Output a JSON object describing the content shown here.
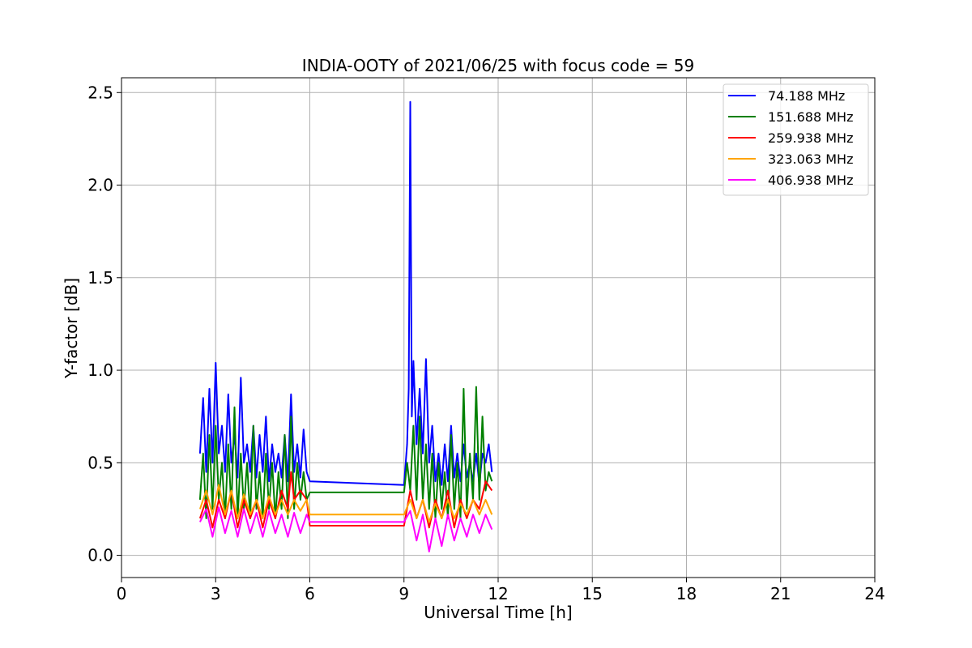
{
  "chart_data": {
    "type": "line",
    "title": "INDIA-OOTY of 2021/06/25 with focus code = 59",
    "xlabel": "Universal Time [h]",
    "ylabel": "Y-factor [dB]",
    "xlim": [
      0,
      24
    ],
    "ylim": [
      -0.12,
      2.58
    ],
    "xticks": [
      0,
      3,
      6,
      9,
      12,
      15,
      18,
      21,
      24
    ],
    "xtick_labels": [
      "0",
      "3",
      "6",
      "9",
      "12",
      "15",
      "18",
      "21",
      "24"
    ],
    "yticks": [
      0.0,
      0.5,
      1.0,
      1.5,
      2.0,
      2.5
    ],
    "ytick_labels": [
      "0.0",
      "0.5",
      "1.0",
      "1.5",
      "2.0",
      "2.5"
    ],
    "grid": true,
    "legend_position": "top-right",
    "series": [
      {
        "name": " 74.188 MHz",
        "color": "#0000ff",
        "x": [
          2.5,
          2.6,
          2.7,
          2.8,
          2.9,
          3.0,
          3.1,
          3.2,
          3.3,
          3.4,
          3.5,
          3.6,
          3.7,
          3.8,
          3.9,
          4.0,
          4.1,
          4.2,
          4.3,
          4.4,
          4.5,
          4.6,
          4.7,
          4.8,
          4.9,
          5.0,
          5.1,
          5.2,
          5.3,
          5.4,
          5.5,
          5.6,
          5.7,
          5.8,
          5.9,
          6.0,
          9.0,
          9.1,
          9.15,
          9.2,
          9.25,
          9.3,
          9.4,
          9.5,
          9.6,
          9.7,
          9.8,
          9.9,
          10.0,
          10.1,
          10.2,
          10.3,
          10.4,
          10.5,
          10.6,
          10.7,
          10.8,
          10.9,
          11.0,
          11.1,
          11.2,
          11.3,
          11.4,
          11.5,
          11.6,
          11.7,
          11.8
        ],
        "y": [
          0.55,
          0.85,
          0.45,
          0.9,
          0.5,
          1.04,
          0.55,
          0.7,
          0.45,
          0.87,
          0.5,
          0.65,
          0.42,
          0.96,
          0.5,
          0.6,
          0.45,
          0.7,
          0.42,
          0.65,
          0.45,
          0.75,
          0.4,
          0.6,
          0.45,
          0.55,
          0.42,
          0.65,
          0.4,
          0.87,
          0.45,
          0.6,
          0.42,
          0.68,
          0.45,
          0.4,
          0.38,
          0.6,
          0.9,
          2.45,
          0.75,
          1.05,
          0.6,
          0.9,
          0.55,
          1.06,
          0.5,
          0.7,
          0.4,
          0.55,
          0.38,
          0.6,
          0.4,
          0.7,
          0.42,
          0.55,
          0.4,
          0.6,
          0.42,
          0.5,
          0.4,
          0.55,
          0.38,
          0.55,
          0.5,
          0.6,
          0.45
        ]
      },
      {
        "name": "151.688 MHz",
        "color": "#008000",
        "x": [
          2.5,
          2.6,
          2.7,
          2.8,
          2.9,
          3.0,
          3.1,
          3.2,
          3.3,
          3.4,
          3.5,
          3.6,
          3.7,
          3.8,
          3.9,
          4.0,
          4.1,
          4.2,
          4.3,
          4.4,
          4.5,
          4.6,
          4.7,
          4.8,
          4.9,
          5.0,
          5.1,
          5.2,
          5.3,
          5.4,
          5.5,
          5.6,
          5.7,
          5.8,
          5.9,
          6.0,
          9.0,
          9.1,
          9.2,
          9.3,
          9.4,
          9.5,
          9.6,
          9.7,
          9.8,
          9.9,
          10.0,
          10.1,
          10.2,
          10.3,
          10.4,
          10.5,
          10.6,
          10.7,
          10.8,
          10.9,
          11.0,
          11.1,
          11.2,
          11.3,
          11.4,
          11.5,
          11.6,
          11.7,
          11.8
        ],
        "y": [
          0.3,
          0.55,
          0.2,
          0.65,
          0.25,
          0.7,
          0.3,
          0.5,
          0.2,
          0.6,
          0.25,
          0.8,
          0.2,
          0.55,
          0.25,
          0.5,
          0.2,
          0.7,
          0.25,
          0.45,
          0.2,
          0.55,
          0.25,
          0.5,
          0.2,
          0.45,
          0.25,
          0.65,
          0.2,
          0.75,
          0.25,
          0.5,
          0.3,
          0.45,
          0.3,
          0.34,
          0.34,
          0.5,
          0.35,
          0.7,
          0.3,
          0.75,
          0.3,
          0.6,
          0.25,
          0.55,
          0.2,
          0.5,
          0.25,
          0.45,
          0.2,
          0.65,
          0.25,
          0.5,
          0.2,
          0.9,
          0.25,
          0.55,
          0.3,
          0.91,
          0.3,
          0.75,
          0.35,
          0.45,
          0.4
        ]
      },
      {
        "name": "259.938 MHz",
        "color": "#ff0000",
        "x": [
          2.5,
          2.7,
          2.9,
          3.1,
          3.3,
          3.5,
          3.7,
          3.9,
          4.1,
          4.3,
          4.5,
          4.7,
          4.9,
          5.1,
          5.3,
          5.4,
          5.5,
          5.7,
          5.9,
          6.0,
          9.0,
          9.2,
          9.4,
          9.6,
          9.8,
          10.0,
          10.2,
          10.4,
          10.6,
          10.8,
          11.0,
          11.2,
          11.4,
          11.6,
          11.8
        ],
        "y": [
          0.2,
          0.3,
          0.15,
          0.3,
          0.2,
          0.35,
          0.15,
          0.3,
          0.2,
          0.3,
          0.15,
          0.3,
          0.2,
          0.35,
          0.25,
          0.45,
          0.3,
          0.35,
          0.3,
          0.16,
          0.16,
          0.35,
          0.2,
          0.3,
          0.15,
          0.3,
          0.2,
          0.35,
          0.15,
          0.3,
          0.2,
          0.3,
          0.25,
          0.4,
          0.35
        ]
      },
      {
        "name": "323.063 MHz",
        "color": "#ffa500",
        "x": [
          2.5,
          2.7,
          2.9,
          3.1,
          3.3,
          3.5,
          3.7,
          3.9,
          4.1,
          4.3,
          4.5,
          4.7,
          4.9,
          5.1,
          5.3,
          5.5,
          5.7,
          5.9,
          6.0,
          9.0,
          9.2,
          9.4,
          9.6,
          9.8,
          10.0,
          10.2,
          10.4,
          10.6,
          10.8,
          11.0,
          11.2,
          11.4,
          11.6,
          11.8
        ],
        "y": [
          0.25,
          0.35,
          0.22,
          0.38,
          0.22,
          0.35,
          0.2,
          0.33,
          0.22,
          0.3,
          0.2,
          0.32,
          0.22,
          0.3,
          0.22,
          0.3,
          0.24,
          0.3,
          0.22,
          0.22,
          0.3,
          0.2,
          0.3,
          0.18,
          0.28,
          0.2,
          0.3,
          0.2,
          0.28,
          0.22,
          0.3,
          0.22,
          0.3,
          0.22
        ]
      },
      {
        "name": "406.938 MHz",
        "color": "#ff00ff",
        "x": [
          2.5,
          2.7,
          2.9,
          3.1,
          3.3,
          3.5,
          3.7,
          3.9,
          4.1,
          4.3,
          4.5,
          4.7,
          4.9,
          5.1,
          5.3,
          5.5,
          5.7,
          5.9,
          6.0,
          9.0,
          9.2,
          9.4,
          9.6,
          9.8,
          10.0,
          10.2,
          10.4,
          10.6,
          10.8,
          11.0,
          11.2,
          11.4,
          11.6,
          11.8
        ],
        "y": [
          0.18,
          0.25,
          0.1,
          0.26,
          0.12,
          0.24,
          0.1,
          0.25,
          0.12,
          0.23,
          0.1,
          0.24,
          0.12,
          0.22,
          0.1,
          0.23,
          0.12,
          0.22,
          0.18,
          0.18,
          0.24,
          0.08,
          0.22,
          0.02,
          0.2,
          0.05,
          0.22,
          0.08,
          0.2,
          0.1,
          0.22,
          0.12,
          0.22,
          0.14
        ]
      }
    ]
  }
}
